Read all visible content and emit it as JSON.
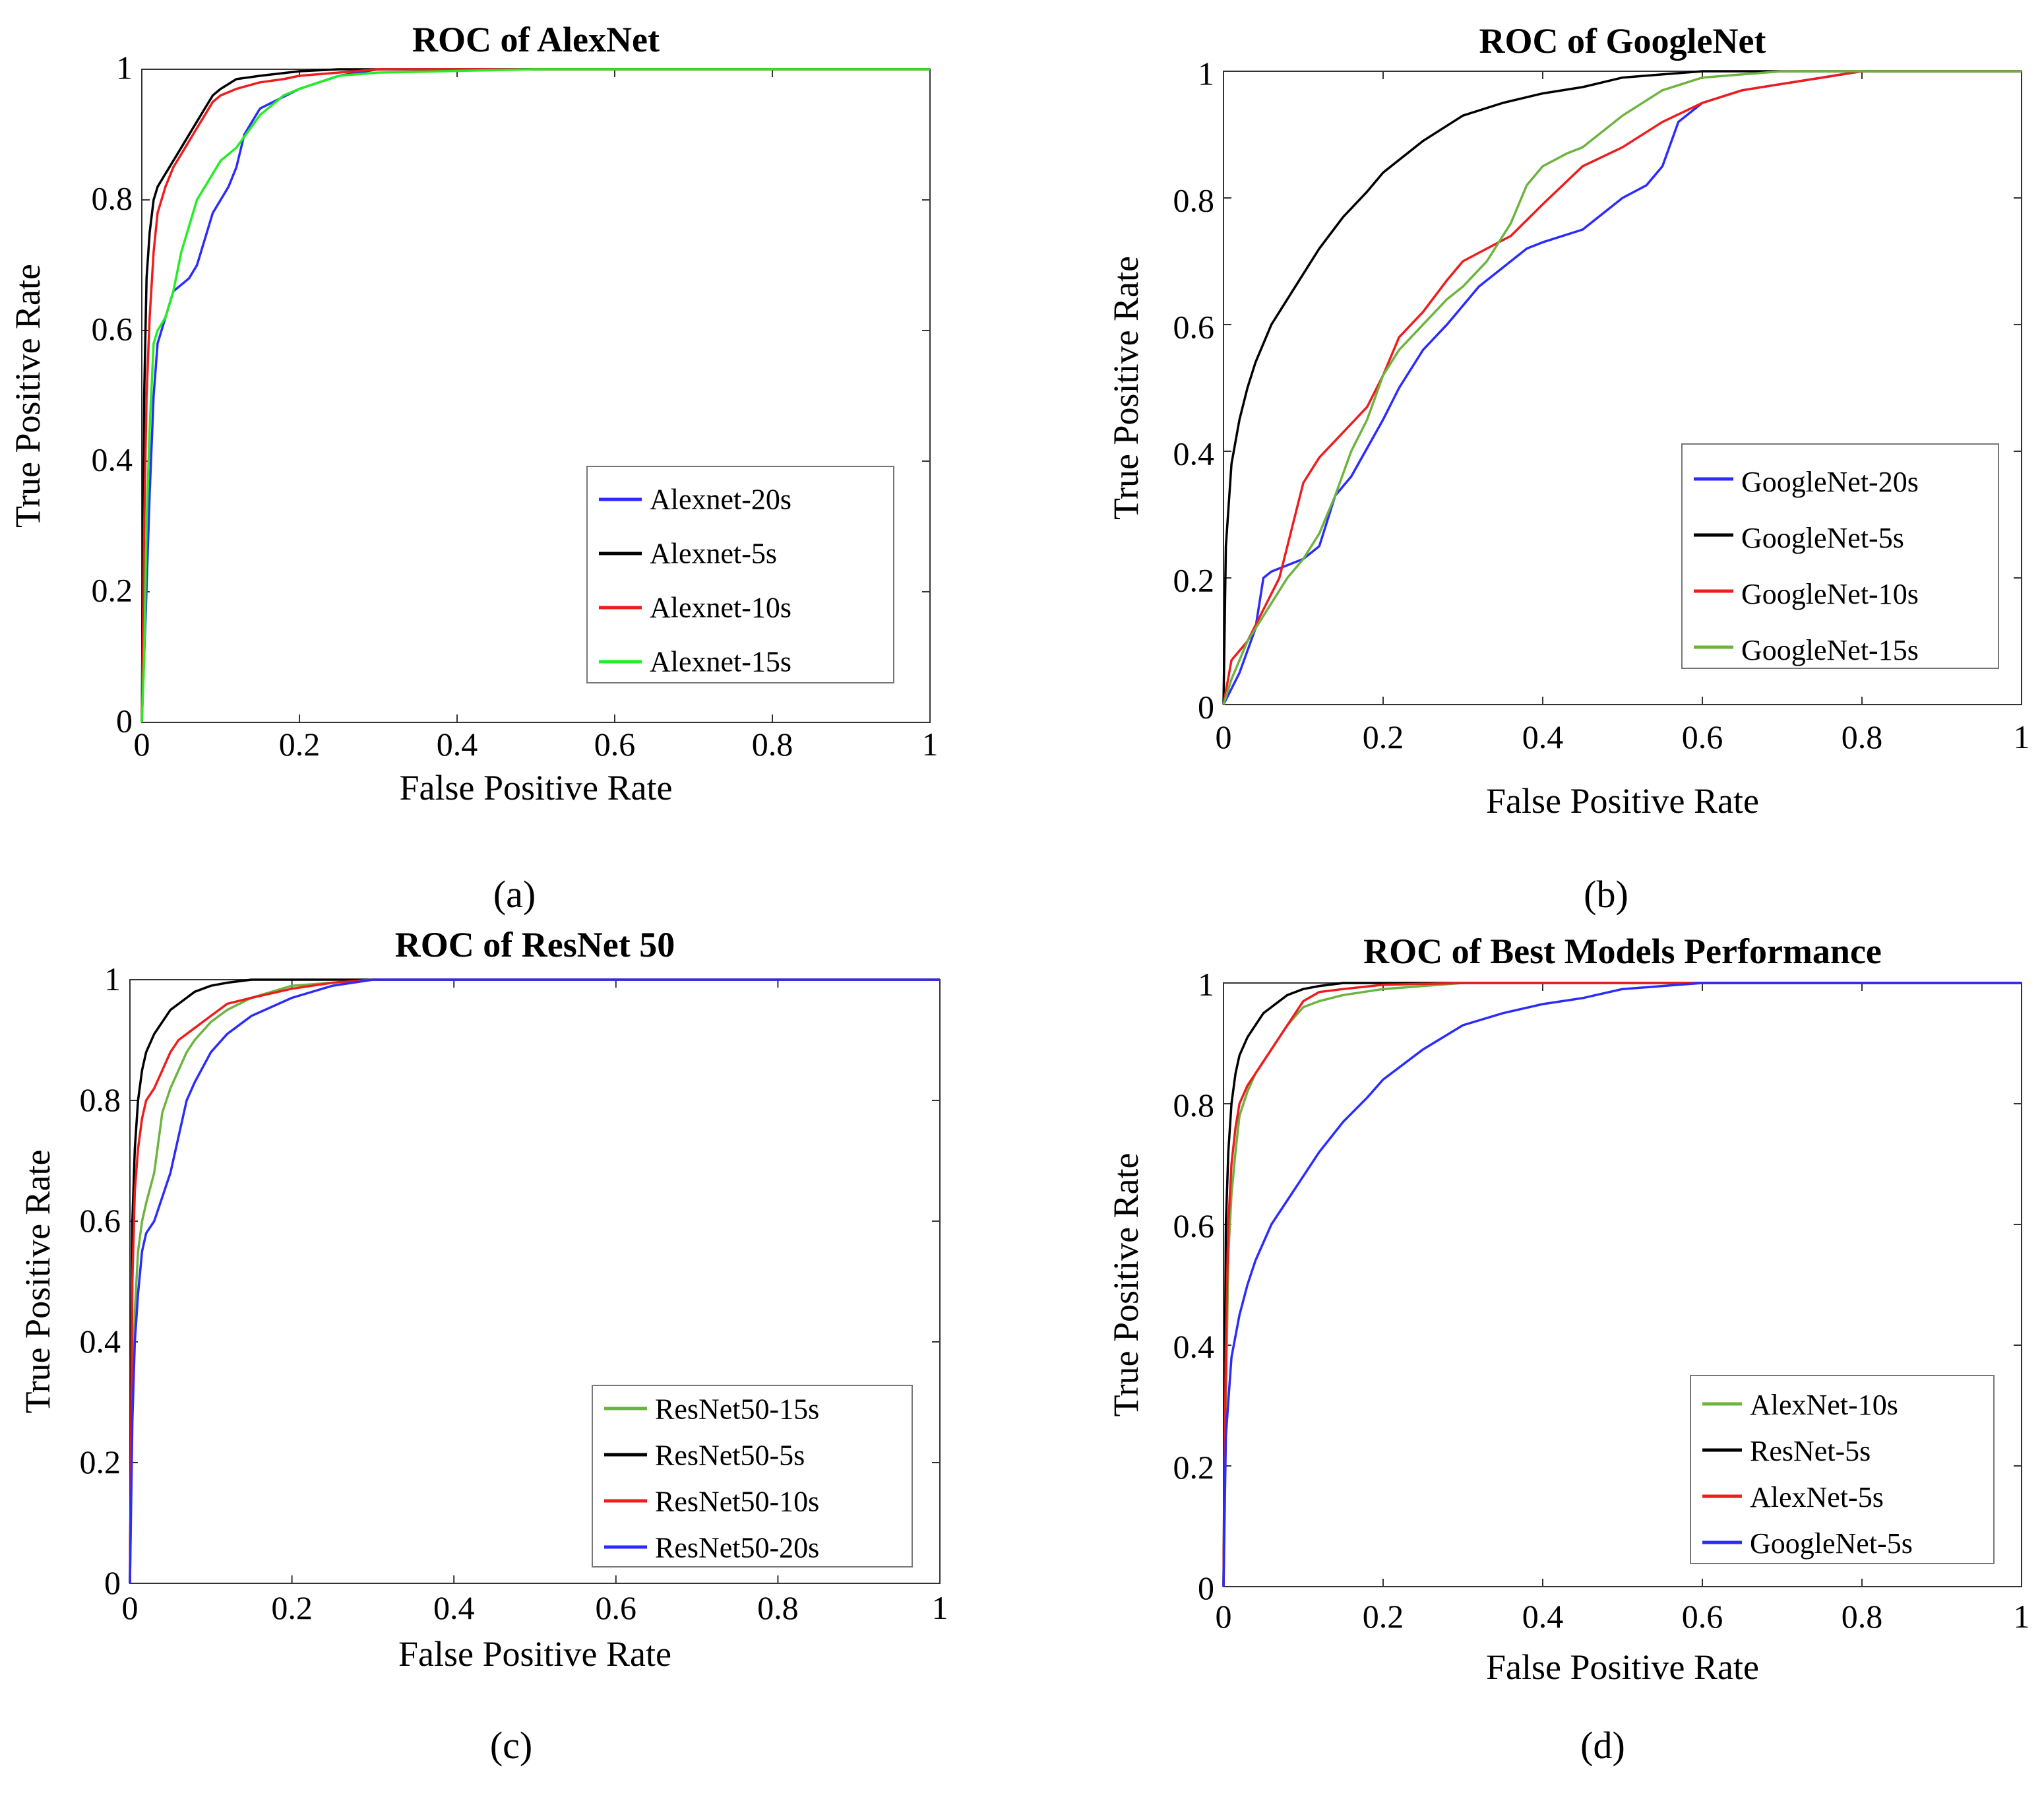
{
  "figure": {
    "captions": [
      "(a)",
      "(b)",
      "(c)",
      "(d)"
    ]
  },
  "chart_data": [
    {
      "type": "line",
      "title": "ROC of AlexNet",
      "xlabel": "False Positive Rate",
      "ylabel": "True Positive Rate",
      "xlim": [
        0,
        1
      ],
      "ylim": [
        0,
        1
      ],
      "xticks": [
        "0",
        "0.2",
        "0.4",
        "0.6",
        "0.8",
        "1"
      ],
      "yticks": [
        "0",
        "0.2",
        "0.4",
        "0.6",
        "0.8",
        "1"
      ],
      "grid": false,
      "legend_position": "lower-right",
      "series": [
        {
          "name": "Alexnet-20s",
          "color": "#2b2bff",
          "x": [
            0,
            0.005,
            0.01,
            0.015,
            0.02,
            0.03,
            0.04,
            0.05,
            0.06,
            0.07,
            0.08,
            0.09,
            0.1,
            0.11,
            0.12,
            0.13,
            0.15,
            0.2,
            0.25,
            0.3,
            0.4,
            0.6,
            0.8,
            1.0
          ],
          "y": [
            0,
            0.17,
            0.35,
            0.5,
            0.58,
            0.62,
            0.66,
            0.67,
            0.68,
            0.7,
            0.74,
            0.78,
            0.8,
            0.82,
            0.85,
            0.9,
            0.94,
            0.97,
            0.99,
            1.0,
            1.0,
            1.0,
            1.0,
            1.0
          ]
        },
        {
          "name": "Alexnet-5s",
          "color": "#000000",
          "x": [
            0,
            0.003,
            0.006,
            0.01,
            0.015,
            0.02,
            0.03,
            0.04,
            0.05,
            0.06,
            0.07,
            0.08,
            0.09,
            0.1,
            0.12,
            0.15,
            0.2,
            0.25,
            0.3,
            0.5,
            0.72,
            1.0
          ],
          "y": [
            0,
            0.5,
            0.68,
            0.75,
            0.8,
            0.82,
            0.84,
            0.86,
            0.88,
            0.9,
            0.92,
            0.94,
            0.96,
            0.97,
            0.985,
            0.99,
            0.997,
            1.0,
            1.0,
            1.0,
            1.0,
            1.0
          ]
        },
        {
          "name": "Alexnet-10s",
          "color": "#ee1c1c",
          "x": [
            0,
            0.003,
            0.006,
            0.01,
            0.015,
            0.02,
            0.03,
            0.04,
            0.05,
            0.06,
            0.07,
            0.08,
            0.09,
            0.1,
            0.12,
            0.15,
            0.18,
            0.2,
            0.25,
            0.3,
            0.5,
            1.0
          ],
          "y": [
            0,
            0.3,
            0.5,
            0.62,
            0.72,
            0.78,
            0.82,
            0.85,
            0.87,
            0.89,
            0.91,
            0.93,
            0.95,
            0.96,
            0.97,
            0.98,
            0.985,
            0.99,
            0.995,
            1.0,
            1.0,
            1.0
          ]
        },
        {
          "name": "Alexnet-15s",
          "color": "#22ee22",
          "x": [
            0,
            0.003,
            0.006,
            0.01,
            0.015,
            0.02,
            0.03,
            0.04,
            0.05,
            0.06,
            0.07,
            0.08,
            0.09,
            0.1,
            0.12,
            0.15,
            0.18,
            0.2,
            0.25,
            0.3,
            0.5,
            1.0
          ],
          "y": [
            0,
            0.1,
            0.3,
            0.45,
            0.58,
            0.6,
            0.62,
            0.66,
            0.72,
            0.76,
            0.8,
            0.82,
            0.84,
            0.86,
            0.88,
            0.93,
            0.96,
            0.97,
            0.99,
            0.995,
            1.0,
            1.0
          ]
        }
      ]
    },
    {
      "type": "line",
      "title": "ROC of GoogleNet",
      "xlabel": "False Positive Rate",
      "ylabel": "True Positive Rate",
      "xlim": [
        0,
        1
      ],
      "ylim": [
        0,
        1
      ],
      "xticks": [
        "0",
        "0.2",
        "0.4",
        "0.6",
        "0.8",
        "1"
      ],
      "yticks": [
        "0",
        "0.2",
        "0.4",
        "0.6",
        "0.8",
        "1"
      ],
      "grid": false,
      "legend_position": "lower-right",
      "series": [
        {
          "name": "GoogleNet-20s",
          "color": "#2b2bff",
          "x": [
            0,
            0.02,
            0.04,
            0.05,
            0.06,
            0.08,
            0.1,
            0.12,
            0.14,
            0.16,
            0.2,
            0.22,
            0.25,
            0.28,
            0.3,
            0.32,
            0.35,
            0.38,
            0.4,
            0.45,
            0.5,
            0.53,
            0.55,
            0.57,
            0.6,
            0.65,
            0.7,
            0.75,
            0.8,
            0.9,
            1.0
          ],
          "y": [
            0,
            0.05,
            0.12,
            0.2,
            0.21,
            0.22,
            0.23,
            0.25,
            0.33,
            0.36,
            0.45,
            0.5,
            0.56,
            0.6,
            0.63,
            0.66,
            0.69,
            0.72,
            0.73,
            0.75,
            0.8,
            0.82,
            0.85,
            0.92,
            0.95,
            0.97,
            0.98,
            0.99,
            1.0,
            1.0,
            1.0
          ]
        },
        {
          "name": "GoogleNet-5s",
          "color": "#000000",
          "x": [
            0,
            0.003,
            0.01,
            0.02,
            0.03,
            0.04,
            0.06,
            0.08,
            0.1,
            0.12,
            0.15,
            0.18,
            0.2,
            0.25,
            0.3,
            0.35,
            0.4,
            0.45,
            0.5,
            0.55,
            0.6,
            0.7,
            0.8,
            0.9,
            1.0
          ],
          "y": [
            0,
            0.25,
            0.38,
            0.45,
            0.5,
            0.54,
            0.6,
            0.64,
            0.68,
            0.72,
            0.77,
            0.81,
            0.84,
            0.89,
            0.93,
            0.95,
            0.965,
            0.975,
            0.99,
            0.995,
            1.0,
            1.0,
            1.0,
            1.0,
            1.0
          ]
        },
        {
          "name": "GoogleNet-10s",
          "color": "#ee1c1c",
          "x": [
            0,
            0.01,
            0.03,
            0.05,
            0.07,
            0.08,
            0.09,
            0.1,
            0.12,
            0.15,
            0.18,
            0.2,
            0.22,
            0.25,
            0.28,
            0.3,
            0.33,
            0.36,
            0.4,
            0.45,
            0.5,
            0.55,
            0.6,
            0.65,
            0.7,
            0.75,
            0.8,
            0.9,
            1.0
          ],
          "y": [
            0,
            0.07,
            0.1,
            0.15,
            0.2,
            0.25,
            0.3,
            0.35,
            0.39,
            0.43,
            0.47,
            0.52,
            0.58,
            0.62,
            0.67,
            0.7,
            0.72,
            0.74,
            0.79,
            0.85,
            0.88,
            0.92,
            0.95,
            0.97,
            0.98,
            0.99,
            1.0,
            1.0,
            1.0
          ]
        },
        {
          "name": "GoogleNet-15s",
          "color": "#6cb33f",
          "x": [
            0,
            0.01,
            0.03,
            0.05,
            0.08,
            0.1,
            0.12,
            0.14,
            0.16,
            0.18,
            0.2,
            0.22,
            0.25,
            0.28,
            0.3,
            0.33,
            0.36,
            0.38,
            0.4,
            0.43,
            0.45,
            0.5,
            0.55,
            0.6,
            0.65,
            0.7,
            0.75,
            0.8,
            1.0
          ],
          "y": [
            0,
            0.04,
            0.1,
            0.14,
            0.2,
            0.23,
            0.27,
            0.33,
            0.4,
            0.45,
            0.52,
            0.56,
            0.6,
            0.64,
            0.66,
            0.7,
            0.76,
            0.82,
            0.85,
            0.87,
            0.88,
            0.93,
            0.97,
            0.99,
            0.995,
            1.0,
            1.0,
            1.0,
            1.0
          ]
        }
      ]
    },
    {
      "type": "line",
      "title": "ROC of ResNet 50",
      "xlabel": "False Positive Rate",
      "ylabel": "True Positive Rate",
      "xlim": [
        0,
        1
      ],
      "ylim": [
        0,
        1
      ],
      "xticks": [
        "0",
        "0.2",
        "0.4",
        "0.6",
        "0.8",
        "1"
      ],
      "yticks": [
        "0",
        "0.2",
        "0.4",
        "0.6",
        "0.8",
        "1"
      ],
      "grid": false,
      "legend_position": "lower-right",
      "series": [
        {
          "name": "ResNet50-15s",
          "color": "#6cb33f",
          "x": [
            0,
            0.003,
            0.006,
            0.01,
            0.015,
            0.02,
            0.03,
            0.04,
            0.05,
            0.06,
            0.07,
            0.08,
            0.1,
            0.12,
            0.15,
            0.2,
            0.25,
            0.3,
            0.5,
            1.0
          ],
          "y": [
            0,
            0.3,
            0.45,
            0.55,
            0.6,
            0.63,
            0.68,
            0.78,
            0.82,
            0.85,
            0.88,
            0.9,
            0.93,
            0.95,
            0.97,
            0.99,
            0.995,
            1.0,
            1.0,
            1.0
          ]
        },
        {
          "name": "ResNet50-5s",
          "color": "#000000",
          "x": [
            0,
            0.003,
            0.006,
            0.01,
            0.015,
            0.02,
            0.03,
            0.04,
            0.05,
            0.06,
            0.08,
            0.1,
            0.12,
            0.15,
            0.2,
            0.25,
            0.3,
            0.5,
            1.0
          ],
          "y": [
            0,
            0.6,
            0.72,
            0.8,
            0.85,
            0.88,
            0.91,
            0.93,
            0.95,
            0.96,
            0.98,
            0.99,
            0.995,
            1.0,
            1.0,
            1.0,
            1.0,
            1.0,
            1.0
          ]
        },
        {
          "name": "ResNet50-10s",
          "color": "#ee1c1c",
          "x": [
            0,
            0.003,
            0.006,
            0.01,
            0.015,
            0.02,
            0.03,
            0.04,
            0.05,
            0.06,
            0.08,
            0.1,
            0.12,
            0.15,
            0.2,
            0.25,
            0.3,
            0.5,
            1.0
          ],
          "y": [
            0,
            0.5,
            0.65,
            0.72,
            0.77,
            0.8,
            0.82,
            0.85,
            0.88,
            0.9,
            0.92,
            0.94,
            0.96,
            0.97,
            0.985,
            0.995,
            1.0,
            1.0,
            1.0
          ]
        },
        {
          "name": "ResNet50-20s",
          "color": "#2b2bff",
          "x": [
            0,
            0.003,
            0.006,
            0.01,
            0.015,
            0.02,
            0.03,
            0.04,
            0.05,
            0.06,
            0.07,
            0.08,
            0.1,
            0.12,
            0.15,
            0.2,
            0.25,
            0.3,
            0.5,
            1.0
          ],
          "y": [
            0,
            0.27,
            0.4,
            0.48,
            0.55,
            0.58,
            0.6,
            0.64,
            0.68,
            0.74,
            0.8,
            0.83,
            0.88,
            0.91,
            0.94,
            0.97,
            0.99,
            1.0,
            1.0,
            1.0
          ]
        }
      ]
    },
    {
      "type": "line",
      "title": "ROC of Best Models Performance",
      "xlabel": "False Positive Rate",
      "ylabel": "True Positive Rate",
      "xlim": [
        0,
        1
      ],
      "ylim": [
        0,
        1
      ],
      "xticks": [
        "0",
        "0.2",
        "0.4",
        "0.6",
        "0.8",
        "1"
      ],
      "yticks": [
        "0",
        "0.2",
        "0.4",
        "0.6",
        "0.8",
        "1"
      ],
      "grid": false,
      "legend_position": "lower-right",
      "series": [
        {
          "name": "AlexNet-10s",
          "color": "#6cb33f",
          "x": [
            0,
            0.003,
            0.006,
            0.01,
            0.015,
            0.02,
            0.03,
            0.04,
            0.05,
            0.06,
            0.07,
            0.08,
            0.1,
            0.12,
            0.15,
            0.2,
            0.25,
            0.3,
            0.5,
            1.0
          ],
          "y": [
            0,
            0.3,
            0.55,
            0.65,
            0.72,
            0.78,
            0.82,
            0.85,
            0.87,
            0.89,
            0.91,
            0.93,
            0.96,
            0.97,
            0.98,
            0.99,
            0.995,
            1.0,
            1.0,
            1.0
          ]
        },
        {
          "name": "ResNet-5s",
          "color": "#000000",
          "x": [
            0,
            0.003,
            0.006,
            0.01,
            0.015,
            0.02,
            0.03,
            0.04,
            0.05,
            0.06,
            0.08,
            0.1,
            0.12,
            0.15,
            0.2,
            0.3,
            0.5,
            1.0
          ],
          "y": [
            0,
            0.6,
            0.72,
            0.8,
            0.85,
            0.88,
            0.91,
            0.93,
            0.95,
            0.96,
            0.98,
            0.99,
            0.995,
            1.0,
            1.0,
            1.0,
            1.0,
            1.0
          ]
        },
        {
          "name": "AlexNet-5s",
          "color": "#ee1c1c",
          "x": [
            0,
            0.003,
            0.006,
            0.01,
            0.015,
            0.02,
            0.03,
            0.04,
            0.05,
            0.06,
            0.07,
            0.08,
            0.09,
            0.1,
            0.12,
            0.15,
            0.2,
            0.3,
            0.5,
            1.0
          ],
          "y": [
            0,
            0.4,
            0.6,
            0.7,
            0.76,
            0.8,
            0.83,
            0.85,
            0.87,
            0.89,
            0.91,
            0.93,
            0.95,
            0.97,
            0.985,
            0.99,
            0.997,
            1.0,
            1.0,
            1.0
          ]
        },
        {
          "name": "GoogleNet-5s",
          "color": "#2b2bff",
          "x": [
            0,
            0.003,
            0.01,
            0.02,
            0.03,
            0.04,
            0.06,
            0.08,
            0.1,
            0.12,
            0.15,
            0.18,
            0.2,
            0.25,
            0.3,
            0.35,
            0.4,
            0.45,
            0.5,
            0.55,
            0.6,
            0.7,
            0.8,
            0.9,
            1.0
          ],
          "y": [
            0,
            0.25,
            0.38,
            0.45,
            0.5,
            0.54,
            0.6,
            0.64,
            0.68,
            0.72,
            0.77,
            0.81,
            0.84,
            0.89,
            0.93,
            0.95,
            0.965,
            0.975,
            0.99,
            0.995,
            1.0,
            1.0,
            1.0,
            1.0,
            1.0
          ]
        }
      ]
    }
  ]
}
